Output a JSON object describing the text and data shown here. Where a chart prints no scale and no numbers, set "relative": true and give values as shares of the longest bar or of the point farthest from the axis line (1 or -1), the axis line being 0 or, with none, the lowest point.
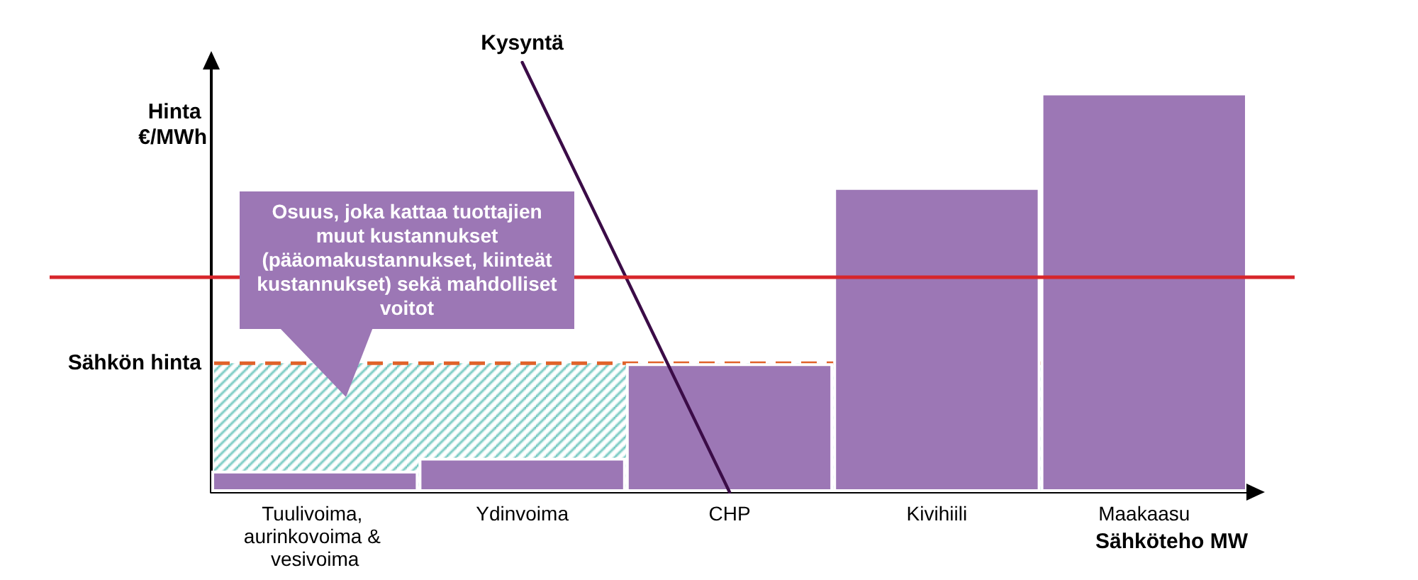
{
  "chart_data": {
    "type": "bar",
    "relative": true,
    "xlabel": "Sähköteho MW",
    "ylabel": "Hinta €/MWh",
    "categories": [
      "Tuulivoima, aurinkovoima & vesivoima",
      "Ydinvoima",
      "CHP",
      "Kivihiili",
      "Maakaasu"
    ],
    "series": [
      {
        "color": "#9c77b5",
        "values": [
          0.05,
          0.08,
          0.3,
          0.71,
          0.93
        ]
      },
      {
        "type": "line",
        "name": "Kysyntä",
        "color": "#3b0c47",
        "x": [
          "Ydinvoima",
          "CHP"
        ],
        "values": [
          1,
          0
        ]
      }
    ],
    "ref_lines": [
      {
        "axis": "y",
        "value": 0.3,
        "label": "Sähkön hinta",
        "color": "#e0622a",
        "line_style": "dashed"
      },
      {
        "axis": "y",
        "value": 0.5,
        "color": "#d7262b"
      }
    ],
    "bands": [
      {
        "axis": "y",
        "from": 0,
        "to": 0.3,
        "color": "#5cbfb6"
      }
    ],
    "annotations": [
      "Osuus, joka kattaa tuottajien muut kustannukset (pääomakustannukset, kiinteät kustannukset) sekä mahdolliset voitot"
    ]
  }
}
